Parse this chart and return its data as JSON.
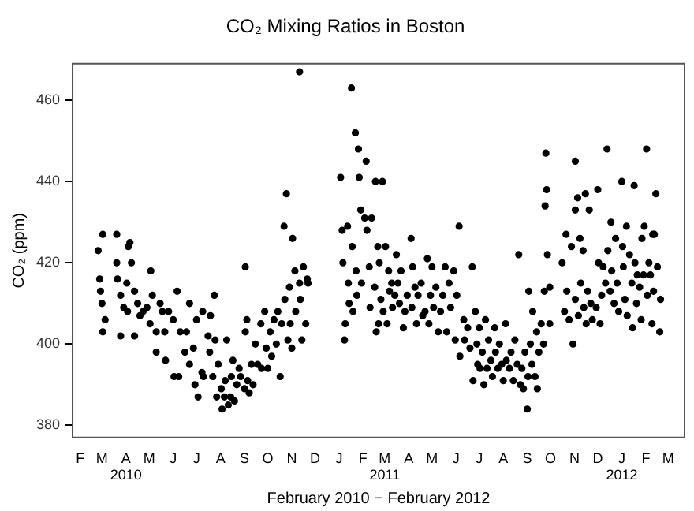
{
  "chart_data": {
    "type": "scatter",
    "title": "CO₂ Mixing Ratios in Boston",
    "xlabel": "February 2010 − February 2012",
    "ylabel": "CO₂ (ppm)",
    "color": "#000000",
    "marker": "circle",
    "grid": false,
    "legend": false,
    "xlim": [
      "2010-01-22",
      "2012-03-22"
    ],
    "xticks": [
      {
        "value": "2010-02-01",
        "label": "F"
      },
      {
        "value": "2010-03-01",
        "label": "M"
      },
      {
        "value": "2010-04-01",
        "label": "A\n2010"
      },
      {
        "value": "2010-05-01",
        "label": "M"
      },
      {
        "value": "2010-06-01",
        "label": "J"
      },
      {
        "value": "2010-07-01",
        "label": "J"
      },
      {
        "value": "2010-08-01",
        "label": "A"
      },
      {
        "value": "2010-09-01",
        "label": "S"
      },
      {
        "value": "2010-10-01",
        "label": "O"
      },
      {
        "value": "2010-11-01",
        "label": "N"
      },
      {
        "value": "2010-12-01",
        "label": "D"
      },
      {
        "value": "2011-01-01",
        "label": "J"
      },
      {
        "value": "2011-02-01",
        "label": "F"
      },
      {
        "value": "2011-03-01",
        "label": "M\n2011"
      },
      {
        "value": "2011-04-01",
        "label": "A"
      },
      {
        "value": "2011-05-01",
        "label": "M"
      },
      {
        "value": "2011-06-01",
        "label": "J"
      },
      {
        "value": "2011-07-01",
        "label": "J"
      },
      {
        "value": "2011-08-01",
        "label": "A"
      },
      {
        "value": "2011-09-01",
        "label": "S"
      },
      {
        "value": "2011-10-01",
        "label": "O"
      },
      {
        "value": "2011-11-01",
        "label": "N"
      },
      {
        "value": "2011-12-01",
        "label": "D"
      },
      {
        "value": "2012-01-01",
        "label": "J\n2012"
      },
      {
        "value": "2012-02-01",
        "label": "F"
      },
      {
        "value": "2012-03-01",
        "label": "M"
      }
    ],
    "ylim": [
      377,
      469
    ],
    "yticks": [
      380,
      400,
      420,
      440,
      460
    ],
    "x": [
      "2010-02-24",
      "2010-03-02",
      "2010-02-26",
      "2010-02-27",
      "2010-03-01",
      "2010-03-02",
      "2010-03-05",
      "2010-03-20",
      "2010-03-20",
      "2010-03-21",
      "2010-03-25",
      "2010-03-25",
      "2010-03-29",
      "2010-04-02",
      "2010-04-04",
      "2010-04-06",
      "2010-04-08",
      "2010-04-03",
      "2010-04-12",
      "2010-04-12",
      "2010-04-16",
      "2010-04-19",
      "2010-04-23",
      "2010-04-28",
      "2010-05-03",
      "2010-05-02",
      "2010-05-05",
      "2010-05-10",
      "2010-05-10",
      "2010-05-15",
      "2010-05-18",
      "2010-05-22",
      "2010-05-21",
      "2010-05-26",
      "2010-06-01",
      "2010-06-02",
      "2010-06-06",
      "2010-06-08",
      "2010-06-10",
      "2010-06-16",
      "2010-06-18",
      "2010-06-22",
      "2010-06-22",
      "2010-06-27",
      "2010-06-29",
      "2010-07-01",
      "2010-07-03",
      "2010-07-08",
      "2010-07-09",
      "2010-07-10",
      "2010-07-16",
      "2010-07-18",
      "2010-07-19",
      "2010-07-22",
      "2010-07-24",
      "2010-07-25",
      "2010-07-27",
      "2010-07-29",
      "2010-08-02",
      "2010-08-03",
      "2010-08-06",
      "2010-08-07",
      "2010-08-09",
      "2010-08-11",
      "2010-08-14",
      "2010-08-15",
      "2010-08-17",
      "2010-08-19",
      "2010-08-22",
      "2010-08-25",
      "2010-08-27",
      "2010-09-01",
      "2010-09-02",
      "2010-09-02",
      "2010-09-04",
      "2010-09-05",
      "2010-09-07",
      "2010-09-10",
      "2010-09-12",
      "2010-09-15",
      "2010-09-18",
      "2010-09-22",
      "2010-09-23",
      "2010-09-27",
      "2010-09-29",
      "2010-10-01",
      "2010-10-04",
      "2010-10-06",
      "2010-10-09",
      "2010-10-12",
      "2010-10-14",
      "2010-10-17",
      "2010-10-19",
      "2010-10-22",
      "2010-10-23",
      "2010-10-25",
      "2010-10-27",
      "2010-10-29",
      "2010-10-30",
      "2010-11-01",
      "2010-11-02",
      "2010-11-05",
      "2010-11-06",
      "2010-11-11",
      "2010-11-11",
      "2010-11-12",
      "2010-11-14",
      "2010-11-16",
      "2010-11-19",
      "2010-11-21",
      "2010-11-22",
      "2011-01-03",
      "2011-01-05",
      "2011-01-06",
      "2011-01-08",
      "2011-01-09",
      "2011-01-12",
      "2011-01-13",
      "2011-01-14",
      "2011-01-17",
      "2011-01-18",
      "2011-01-19",
      "2011-01-22",
      "2011-01-23",
      "2011-01-24",
      "2011-01-26",
      "2011-01-27",
      "2011-01-29",
      "2011-01-30",
      "2011-02-03",
      "2011-02-05",
      "2011-02-06",
      "2011-02-09",
      "2011-02-10",
      "2011-02-12",
      "2011-02-16",
      "2011-02-17",
      "2011-02-18",
      "2011-02-20",
      "2011-02-21",
      "2011-02-22",
      "2011-02-24",
      "2011-02-26",
      "2011-02-27",
      "2011-03-02",
      "2011-03-04",
      "2011-03-06",
      "2011-03-07",
      "2011-03-10",
      "2011-03-11",
      "2011-03-14",
      "2011-03-16",
      "2011-03-18",
      "2011-03-20",
      "2011-03-22",
      "2011-03-25",
      "2011-03-27",
      "2011-03-30",
      "2011-04-04",
      "2011-04-05",
      "2011-04-06",
      "2011-04-09",
      "2011-04-11",
      "2011-04-13",
      "2011-04-17",
      "2011-04-19",
      "2011-04-22",
      "2011-04-25",
      "2011-04-27",
      "2011-04-29",
      "2011-05-01",
      "2011-05-03",
      "2011-05-06",
      "2011-05-09",
      "2011-05-12",
      "2011-05-15",
      "2011-05-18",
      "2011-05-20",
      "2011-05-23",
      "2011-05-25",
      "2011-05-29",
      "2011-05-31",
      "2011-06-02",
      "2011-06-05",
      "2011-06-06",
      "2011-06-11",
      "2011-06-12",
      "2011-06-16",
      "2011-06-19",
      "2011-06-22",
      "2011-06-23",
      "2011-06-26",
      "2011-06-28",
      "2011-06-29",
      "2011-07-01",
      "2011-07-02",
      "2011-07-05",
      "2011-07-07",
      "2011-07-09",
      "2011-07-11",
      "2011-07-13",
      "2011-07-16",
      "2011-07-18",
      "2011-07-21",
      "2011-07-22",
      "2011-07-25",
      "2011-07-27",
      "2011-07-30",
      "2011-08-01",
      "2011-08-04",
      "2011-08-05",
      "2011-08-09",
      "2011-08-11",
      "2011-08-14",
      "2011-08-16",
      "2011-08-19",
      "2011-08-21",
      "2011-08-23",
      "2011-08-25",
      "2011-08-27",
      "2011-08-29",
      "2011-09-01",
      "2011-09-02",
      "2011-09-03",
      "2011-09-05",
      "2011-09-07",
      "2011-09-08",
      "2011-09-11",
      "2011-09-13",
      "2011-09-14",
      "2011-09-16",
      "2011-09-19",
      "2011-09-22",
      "2011-09-23",
      "2011-09-24",
      "2011-09-25",
      "2011-09-26",
      "2011-09-27",
      "2011-09-30",
      "2011-09-30",
      "2011-10-16",
      "2011-10-19",
      "2011-10-21",
      "2011-10-22",
      "2011-10-25",
      "2011-10-28",
      "2011-10-30",
      "2011-11-02",
      "2011-11-02",
      "2011-11-02",
      "2011-11-05",
      "2011-11-06",
      "2011-11-08",
      "2011-11-09",
      "2011-11-12",
      "2011-11-13",
      "2011-11-15",
      "2011-11-16",
      "2011-11-18",
      "2011-11-20",
      "2011-11-22",
      "2011-11-24",
      "2011-11-29",
      "2011-12-01",
      "2011-12-02",
      "2011-12-04",
      "2011-12-06",
      "2011-12-08",
      "2011-12-11",
      "2011-12-13",
      "2011-12-14",
      "2011-12-17",
      "2011-12-18",
      "2011-12-19",
      "2011-12-22",
      "2011-12-24",
      "2011-12-26",
      "2011-12-28",
      "2012-01-01",
      "2012-01-02",
      "2012-01-03",
      "2012-01-05",
      "2012-01-07",
      "2012-01-08",
      "2012-01-11",
      "2012-01-14",
      "2012-01-15",
      "2012-01-17",
      "2012-01-18",
      "2012-01-20",
      "2012-01-21",
      "2012-01-24",
      "2012-01-26",
      "2012-01-27",
      "2012-01-29",
      "2012-01-30",
      "2012-02-02",
      "2012-02-03",
      "2012-02-05",
      "2012-02-07",
      "2012-02-09",
      "2012-02-10",
      "2012-02-11",
      "2012-02-12",
      "2012-02-14",
      "2012-02-16",
      "2012-02-19",
      "2012-02-20"
    ],
    "values": [
      423,
      427,
      416,
      413,
      410,
      403,
      406,
      427,
      420,
      416,
      412,
      402,
      409,
      415,
      424,
      425,
      420,
      408,
      413,
      402,
      410,
      407,
      408,
      409,
      418,
      405,
      412,
      398,
      403,
      410,
      408,
      396,
      403,
      408,
      406,
      392,
      413,
      392,
      403,
      398,
      403,
      410,
      395,
      399,
      390,
      406,
      387,
      393,
      408,
      392,
      402,
      398,
      407,
      392,
      412,
      401,
      387,
      395,
      389,
      384,
      387,
      391,
      401,
      385,
      387,
      392,
      396,
      386,
      390,
      394,
      392,
      389,
      419,
      403,
      406,
      391,
      388,
      395,
      390,
      400,
      395,
      405,
      394,
      408,
      399,
      394,
      403,
      397,
      406,
      400,
      408,
      392,
      405,
      429,
      411,
      437,
      401,
      414,
      405,
      399,
      426,
      418,
      408,
      467,
      415,
      411,
      401,
      419,
      405,
      416,
      415,
      441,
      428,
      420,
      401,
      405,
      429,
      415,
      410,
      463,
      424,
      408,
      452,
      418,
      412,
      448,
      441,
      433,
      415,
      431,
      445,
      428,
      419,
      409,
      431,
      414,
      440,
      403,
      424,
      405,
      420,
      411,
      440,
      408,
      424,
      405,
      418,
      413,
      415,
      409,
      412,
      422,
      415,
      410,
      418,
      404,
      408,
      412,
      426,
      409,
      419,
      414,
      405,
      412,
      415,
      407,
      408,
      421,
      405,
      412,
      419,
      409,
      414,
      403,
      408,
      412,
      419,
      403,
      415,
      409,
      418,
      401,
      412,
      429,
      397,
      406,
      401,
      404,
      399,
      419,
      391,
      408,
      400,
      395,
      404,
      394,
      398,
      390,
      406,
      394,
      401,
      396,
      392,
      404,
      398,
      394,
      400,
      395,
      391,
      405,
      396,
      394,
      398,
      391,
      401,
      395,
      422,
      390,
      394,
      389,
      398,
      384,
      392,
      413,
      400,
      395,
      408,
      392,
      403,
      389,
      398,
      405,
      400,
      413,
      434,
      447,
      438,
      422,
      405,
      414,
      420,
      408,
      427,
      413,
      406,
      424,
      400,
      445,
      433,
      411,
      436,
      407,
      426,
      415,
      423,
      409,
      437,
      405,
      413,
      433,
      410,
      406,
      409,
      438,
      420,
      405,
      412,
      419,
      415,
      448,
      423,
      413,
      430,
      418,
      410,
      426,
      415,
      408,
      440,
      424,
      419,
      411,
      429,
      407,
      422,
      415,
      404,
      439,
      420,
      410,
      417,
      414,
      406,
      426,
      417,
      429,
      448,
      412,
      420,
      417,
      405,
      427,
      413,
      427,
      437,
      419,
      403,
      411
    ]
  }
}
